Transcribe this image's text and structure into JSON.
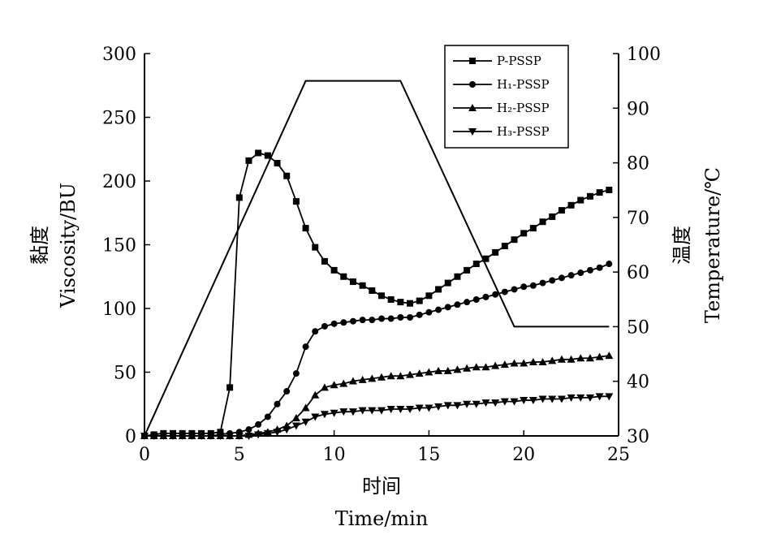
{
  "chart_data": {
    "type": "line",
    "xlabel": "时间",
    "xlabel_en": "Time/min",
    "ylabel": "黏度",
    "ylabel_en": "Viscosity/BU",
    "y2label": "温度",
    "y2label_en": "Temperature/℃",
    "xlim": [
      0,
      25
    ],
    "ylim": [
      0,
      300
    ],
    "y2lim": [
      30,
      100
    ],
    "x_ticks": [
      "0",
      "5",
      "10",
      "15",
      "20",
      "25"
    ],
    "y_ticks": [
      "0",
      "50",
      "100",
      "150",
      "200",
      "250",
      "300"
    ],
    "y2_ticks": [
      "30",
      "40",
      "50",
      "60",
      "70",
      "80",
      "90",
      "100"
    ],
    "grid": false,
    "legend_position": "top-right",
    "series": [
      {
        "name": "P-PSSP",
        "marker": "square",
        "x": [
          0,
          0.5,
          1,
          1.5,
          2,
          2.5,
          3,
          3.5,
          4,
          4.5,
          5,
          5.5,
          6,
          6.5,
          7,
          7.5,
          8,
          8.5,
          9,
          9.5,
          10,
          10.5,
          11,
          11.5,
          12,
          12.5,
          13,
          13.5,
          14,
          14.5,
          15,
          15.5,
          16,
          16.5,
          17,
          17.5,
          18,
          18.5,
          19,
          19.5,
          20,
          20.5,
          21,
          21.5,
          22,
          22.5,
          23,
          23.5,
          24,
          24.5
        ],
        "y": [
          0,
          1,
          2,
          2,
          2,
          2,
          2,
          2,
          3,
          38,
          187,
          216,
          222,
          220,
          214,
          204,
          184,
          163,
          148,
          137,
          130,
          125,
          121,
          118,
          114,
          110,
          107,
          105,
          104,
          106,
          110,
          115,
          120,
          125,
          130,
          135,
          139,
          144,
          149,
          154,
          159,
          163,
          168,
          172,
          177,
          181,
          185,
          188,
          191,
          193
        ]
      },
      {
        "name": "H₁-PSSP",
        "marker": "circle",
        "x": [
          0,
          0.5,
          1,
          1.5,
          2,
          2.5,
          3,
          3.5,
          4,
          4.5,
          5,
          5.5,
          6,
          6.5,
          7,
          7.5,
          8,
          8.5,
          9,
          9.5,
          10,
          10.5,
          11,
          11.5,
          12,
          12.5,
          13,
          13.5,
          14,
          14.5,
          15,
          15.5,
          16,
          16.5,
          17,
          17.5,
          18,
          18.5,
          19,
          19.5,
          20,
          20.5,
          21,
          21.5,
          22,
          22.5,
          23,
          23.5,
          24,
          24.5
        ],
        "y": [
          0,
          0,
          0,
          0,
          0,
          0,
          0,
          0,
          1,
          2,
          3,
          5,
          9,
          15,
          25,
          35,
          49,
          70,
          82,
          86,
          88,
          89,
          90,
          91,
          91,
          92,
          92,
          93,
          93,
          95,
          97,
          99,
          101,
          103,
          105,
          107,
          109,
          111,
          113,
          115,
          117,
          118,
          120,
          122,
          124,
          126,
          128,
          130,
          132,
          135
        ]
      },
      {
        "name": "H₂-PSSP",
        "marker": "triangle-up",
        "x": [
          0,
          0.5,
          1,
          1.5,
          2,
          2.5,
          3,
          3.5,
          4,
          4.5,
          5,
          5.5,
          6,
          6.5,
          7,
          7.5,
          8,
          8.5,
          9,
          9.5,
          10,
          10.5,
          11,
          11.5,
          12,
          12.5,
          13,
          13.5,
          14,
          14.5,
          15,
          15.5,
          16,
          16.5,
          17,
          17.5,
          18,
          18.5,
          19,
          19.5,
          20,
          20.5,
          21,
          21.5,
          22,
          22.5,
          23,
          23.5,
          24,
          24.5
        ],
        "y": [
          0,
          0,
          0,
          0,
          0,
          0,
          0,
          0,
          0,
          0,
          0,
          1,
          2,
          3,
          5,
          8,
          14,
          22,
          32,
          38,
          40,
          41,
          43,
          44,
          45,
          46,
          47,
          47,
          48,
          49,
          50,
          51,
          51,
          52,
          53,
          54,
          54,
          55,
          56,
          57,
          57,
          58,
          58,
          59,
          60,
          60,
          61,
          61,
          62,
          63
        ]
      },
      {
        "name": "H₃-PSSP",
        "marker": "triangle-down",
        "x": [
          0,
          0.5,
          1,
          1.5,
          2,
          2.5,
          3,
          3.5,
          4,
          4.5,
          5,
          5.5,
          6,
          6.5,
          7,
          7.5,
          8,
          8.5,
          9,
          9.5,
          10,
          10.5,
          11,
          11.5,
          12,
          12.5,
          13,
          13.5,
          14,
          14.5,
          15,
          15.5,
          16,
          16.5,
          17,
          17.5,
          18,
          18.5,
          19,
          19.5,
          20,
          20.5,
          21,
          21.5,
          22,
          22.5,
          23,
          23.5,
          24,
          24.5
        ],
        "y": [
          0,
          0,
          0,
          0,
          0,
          0,
          0,
          0,
          0,
          0,
          0,
          0,
          1,
          2,
          3,
          5,
          8,
          11,
          15,
          17,
          18,
          19,
          19,
          20,
          20,
          20,
          21,
          21,
          21,
          22,
          22,
          23,
          24,
          24,
          25,
          25,
          26,
          26,
          27,
          27,
          28,
          28,
          29,
          29,
          29,
          30,
          30,
          30,
          31,
          31
        ]
      }
    ],
    "temperature_profile": {
      "axis": "right",
      "marker": "none",
      "x": [
        0,
        8.5,
        13.5,
        19.5,
        24.5
      ],
      "y": [
        30,
        95,
        95,
        50,
        50
      ]
    }
  }
}
